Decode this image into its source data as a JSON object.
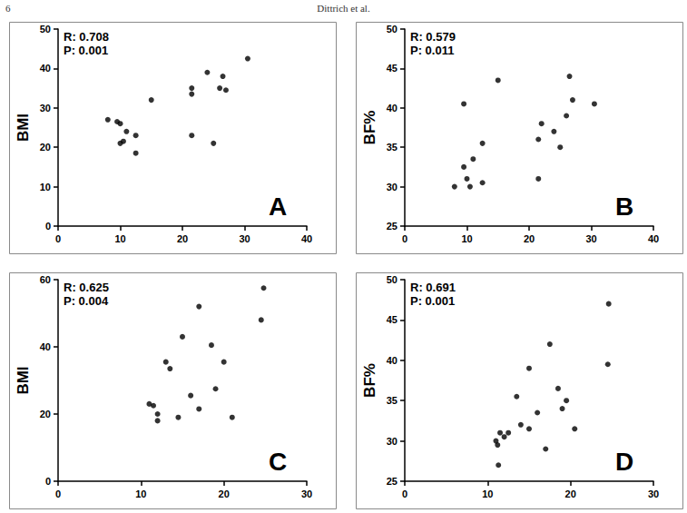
{
  "header": {
    "page": "6",
    "running_head": "Dittrich et al."
  },
  "chart_data": [
    {
      "type": "scatter",
      "panel_label": "A",
      "ylabel": "BMI",
      "annotations": [
        "R: 0.708",
        "P: 0.001"
      ],
      "x": [
        8,
        9.5,
        10,
        10,
        10.5,
        11,
        12.5,
        12.5,
        15,
        21.5,
        21.5,
        21.5,
        24,
        25,
        26,
        26.5,
        27,
        30.5
      ],
      "values": [
        27,
        26.5,
        26,
        21,
        21.5,
        24,
        23,
        18.5,
        32,
        23,
        33.5,
        35,
        39,
        21,
        35,
        38,
        34.5,
        42.5
      ],
      "color": "#000000",
      "marker": "circle",
      "grid": false,
      "xlim": [
        0,
        40
      ],
      "xticks": [
        0,
        10,
        20,
        30,
        40
      ],
      "ylim": [
        0,
        50
      ],
      "yticks": [
        0,
        10,
        20,
        30,
        40,
        50
      ]
    },
    {
      "type": "scatter",
      "panel_label": "B",
      "ylabel": "BF%",
      "annotations": [
        "R: 0.579",
        "P: 0.011"
      ],
      "x": [
        8,
        9.5,
        9.5,
        10,
        10.5,
        11,
        12.5,
        12.5,
        15,
        21.5,
        21.5,
        22,
        24,
        25,
        26,
        26.5,
        27,
        30.5
      ],
      "values": [
        30,
        40.5,
        32.5,
        31,
        30,
        33.5,
        30.5,
        35.5,
        43.5,
        31,
        36,
        38,
        37,
        35,
        39,
        44,
        41,
        40.5
      ],
      "color": "#000000",
      "marker": "circle",
      "grid": false,
      "xlim": [
        0,
        40
      ],
      "xticks": [
        0,
        10,
        20,
        30,
        40
      ],
      "ylim": [
        25,
        50
      ],
      "yticks": [
        25,
        30,
        35,
        40,
        45,
        50
      ]
    },
    {
      "type": "scatter",
      "panel_label": "C",
      "ylabel": "BMI",
      "annotations": [
        "R: 0.625",
        "P: 0.004"
      ],
      "x": [
        11,
        11.5,
        12,
        12,
        13,
        13.5,
        14.5,
        15,
        16,
        17,
        17,
        18.5,
        19,
        20,
        21,
        24.5,
        24.8
      ],
      "values": [
        23,
        22.5,
        18,
        20,
        35.5,
        33.5,
        19,
        43,
        25.5,
        21.5,
        52,
        40.5,
        27.5,
        35.5,
        19,
        48,
        57.5
      ],
      "color": "#000000",
      "marker": "circle",
      "grid": false,
      "xlim": [
        0,
        30
      ],
      "xticks": [
        0,
        10,
        20,
        30
      ],
      "ylim": [
        0,
        60
      ],
      "yticks": [
        0,
        20,
        40,
        60
      ]
    },
    {
      "type": "scatter",
      "panel_label": "D",
      "ylabel": "BF%",
      "annotations": [
        "R: 0.691",
        "P: 0.001"
      ],
      "x": [
        11,
        11.2,
        11.3,
        11.5,
        12,
        12.5,
        13.5,
        14,
        15,
        15,
        16,
        17,
        17.5,
        18.5,
        19,
        19.5,
        20.5,
        24.5,
        24.6
      ],
      "values": [
        30,
        29.5,
        27,
        31,
        30.5,
        31,
        35.5,
        32,
        31.5,
        39,
        33.5,
        29,
        42,
        36.5,
        34,
        35,
        31.5,
        39.5,
        47
      ],
      "color": "#000000",
      "marker": "circle",
      "grid": false,
      "xlim": [
        0,
        30
      ],
      "xticks": [
        0,
        10,
        20,
        30
      ],
      "ylim": [
        25,
        50
      ],
      "yticks": [
        25,
        30,
        35,
        40,
        45,
        50
      ]
    }
  ]
}
